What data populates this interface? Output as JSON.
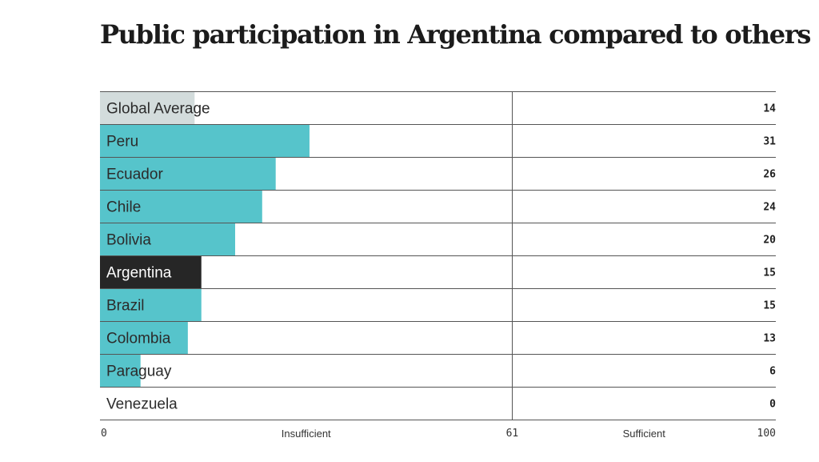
{
  "title": "Public participation in Argentina compared to others",
  "colors": {
    "bar": "#56c4cb",
    "highlight": "#262626",
    "average": "#d3dcdc",
    "grid": "#555555"
  },
  "chart_data": {
    "type": "bar",
    "orientation": "horizontal",
    "title": "Public participation in Argentina compared to others",
    "categories": [
      "Global Average",
      "Peru",
      "Ecuador",
      "Chile",
      "Bolivia",
      "Argentina",
      "Brazil",
      "Colombia",
      "Paraguay",
      "Venezuela"
    ],
    "values": [
      14,
      31,
      26,
      24,
      20,
      15,
      15,
      13,
      6,
      0
    ],
    "value_labels": [
      "14",
      "31",
      "26",
      "24",
      "20",
      "15",
      "15",
      "13",
      "6",
      "0"
    ],
    "highlight": "Argentina",
    "average": "Global Average",
    "xlim": [
      0,
      100
    ],
    "threshold": 61,
    "ticks": [
      {
        "value": 0,
        "label": "0"
      },
      {
        "value": 61,
        "label": "61"
      },
      {
        "value": 100,
        "label": "100"
      }
    ],
    "bands": [
      {
        "label": "Insufficient",
        "from": 0,
        "to": 61
      },
      {
        "label": "Sufficient",
        "from": 61,
        "to": 100
      }
    ]
  }
}
